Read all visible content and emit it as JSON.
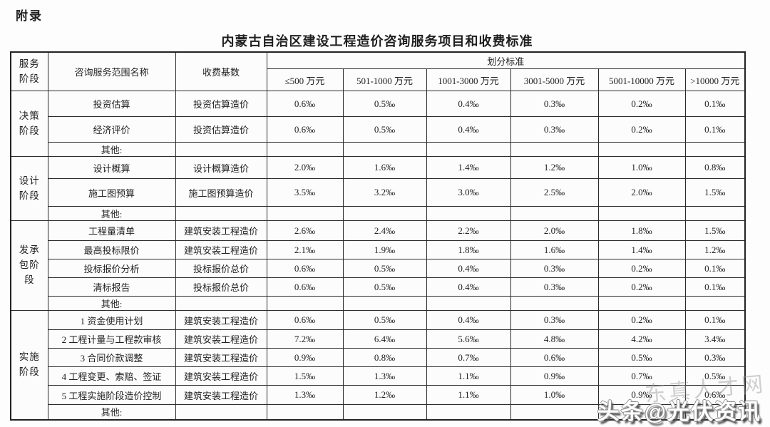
{
  "page": {
    "appendix_label": "附录",
    "title": "内蒙古自治区建设工程造价咨询服务项目和收费标准"
  },
  "table": {
    "headers": {
      "stage_lines": [
        "服务",
        "阶段"
      ],
      "scope": "咨询服务范围名称",
      "base": "收费基数",
      "division": "划分标准",
      "ranges": [
        "≤500 万元",
        "501-1000 万元",
        "1001-3000 万元",
        "3001-5000 万元",
        "5001-10000 万元",
        ">10000 万元"
      ]
    },
    "groups": [
      {
        "stage": "决策阶段",
        "stage_lines": [
          "决策",
          "阶段"
        ],
        "rows": [
          {
            "name": "投资估算",
            "base": "投资估算造价",
            "values": [
              "0.6‰",
              "0.5‰",
              "0.4‰",
              "0.3‰",
              "0.2‰",
              "0.1‰"
            ]
          },
          {
            "name": "经济评价",
            "base": "投资估算造价",
            "values": [
              "0.6‰",
              "0.5‰",
              "0.4‰",
              "0.3‰",
              "0.2‰",
              "0.1‰"
            ]
          },
          {
            "name": "其他:",
            "base": "",
            "values": [
              "",
              "",
              "",
              "",
              "",
              ""
            ]
          }
        ]
      },
      {
        "stage": "设计阶段",
        "stage_lines": [
          "设计",
          "阶段"
        ],
        "rows": [
          {
            "name": "设计概算",
            "base": "设计概算造价",
            "values": [
              "2.0‰",
              "1.6‰",
              "1.4‰",
              "1.2‰",
              "1.0‰",
              "0.8‰"
            ]
          },
          {
            "name": "施工图预算",
            "base": "施工图预算造价",
            "values": [
              "3.5‰",
              "3.2‰",
              "3.0‰",
              "2.5‰",
              "2.0‰",
              "1.5‰"
            ]
          },
          {
            "name": "其他:",
            "base": "",
            "values": [
              "",
              "",
              "",
              "",
              "",
              ""
            ]
          }
        ]
      },
      {
        "stage": "发承包阶段",
        "stage_lines": [
          "发承",
          "包阶",
          "段"
        ],
        "rows": [
          {
            "name": "工程量清单",
            "base": "建筑安装工程造价",
            "values": [
              "2.6‰",
              "2.4‰",
              "2.2‰",
              "2.0‰",
              "1.8‰",
              "1.5‰"
            ]
          },
          {
            "name": "最高投标限价",
            "base": "建筑安装工程造价",
            "values": [
              "2.1‰",
              "1.9‰",
              "1.8‰",
              "1.6‰",
              "1.4‰",
              "1.2‰"
            ]
          },
          {
            "name": "投标报价分析",
            "base": "投标报价总价",
            "values": [
              "0.6‰",
              "0.5‰",
              "0.4‰",
              "0.3‰",
              "0.2‰",
              "0.1‰"
            ]
          },
          {
            "name": "清标报告",
            "base": "投标报价总价",
            "values": [
              "0.6‰",
              "0.5‰",
              "0.4‰",
              "0.3‰",
              "0.2‰",
              "0.1‰"
            ]
          },
          {
            "name": "其他:",
            "base": "",
            "values": [
              "",
              "",
              "",
              "",
              "",
              ""
            ]
          }
        ]
      },
      {
        "stage": "实施阶段",
        "stage_lines": [
          "实施",
          "阶段"
        ],
        "rows": [
          {
            "name": "1 资金使用计划",
            "base": "建筑安装工程造价",
            "values": [
              "0.6‰",
              "0.5‰",
              "0.4‰",
              "0.3‰",
              "0.2‰",
              "0.1‰"
            ]
          },
          {
            "name": "2 工程计量与工程款审核",
            "base": "建筑安装工程造价",
            "values": [
              "7.2‰",
              "6.4‰",
              "5.6‰",
              "4.8‰",
              "4.2‰",
              "3.4‰"
            ]
          },
          {
            "name": "3 合同价款调整",
            "base": "建筑安装工程造价",
            "values": [
              "0.9‰",
              "0.8‰",
              "0.7‰",
              "0.6‰",
              "0.5‰",
              "0.3‰"
            ]
          },
          {
            "name": "4 工程变更、索赔、签证",
            "base": "建筑安装工程造价",
            "values": [
              "1.5‰",
              "1.3‰",
              "1.1‰",
              "0.9‰",
              "0.7‰",
              "0.5‰"
            ]
          },
          {
            "name": "5 工程实施阶段造价控制",
            "base": "建筑安装工程造价",
            "values": [
              "1.3‰",
              "1.2‰",
              "1.1‰",
              "1.0‰",
              "0.9‰",
              "0.6‰"
            ]
          },
          {
            "name": "其他:",
            "base": "",
            "values": [
              "",
              "",
              "",
              "",
              "",
              ""
            ]
          }
        ]
      }
    ]
  },
  "watermark": {
    "main": "头条@光伏资讯",
    "faint": "东真人才网"
  }
}
